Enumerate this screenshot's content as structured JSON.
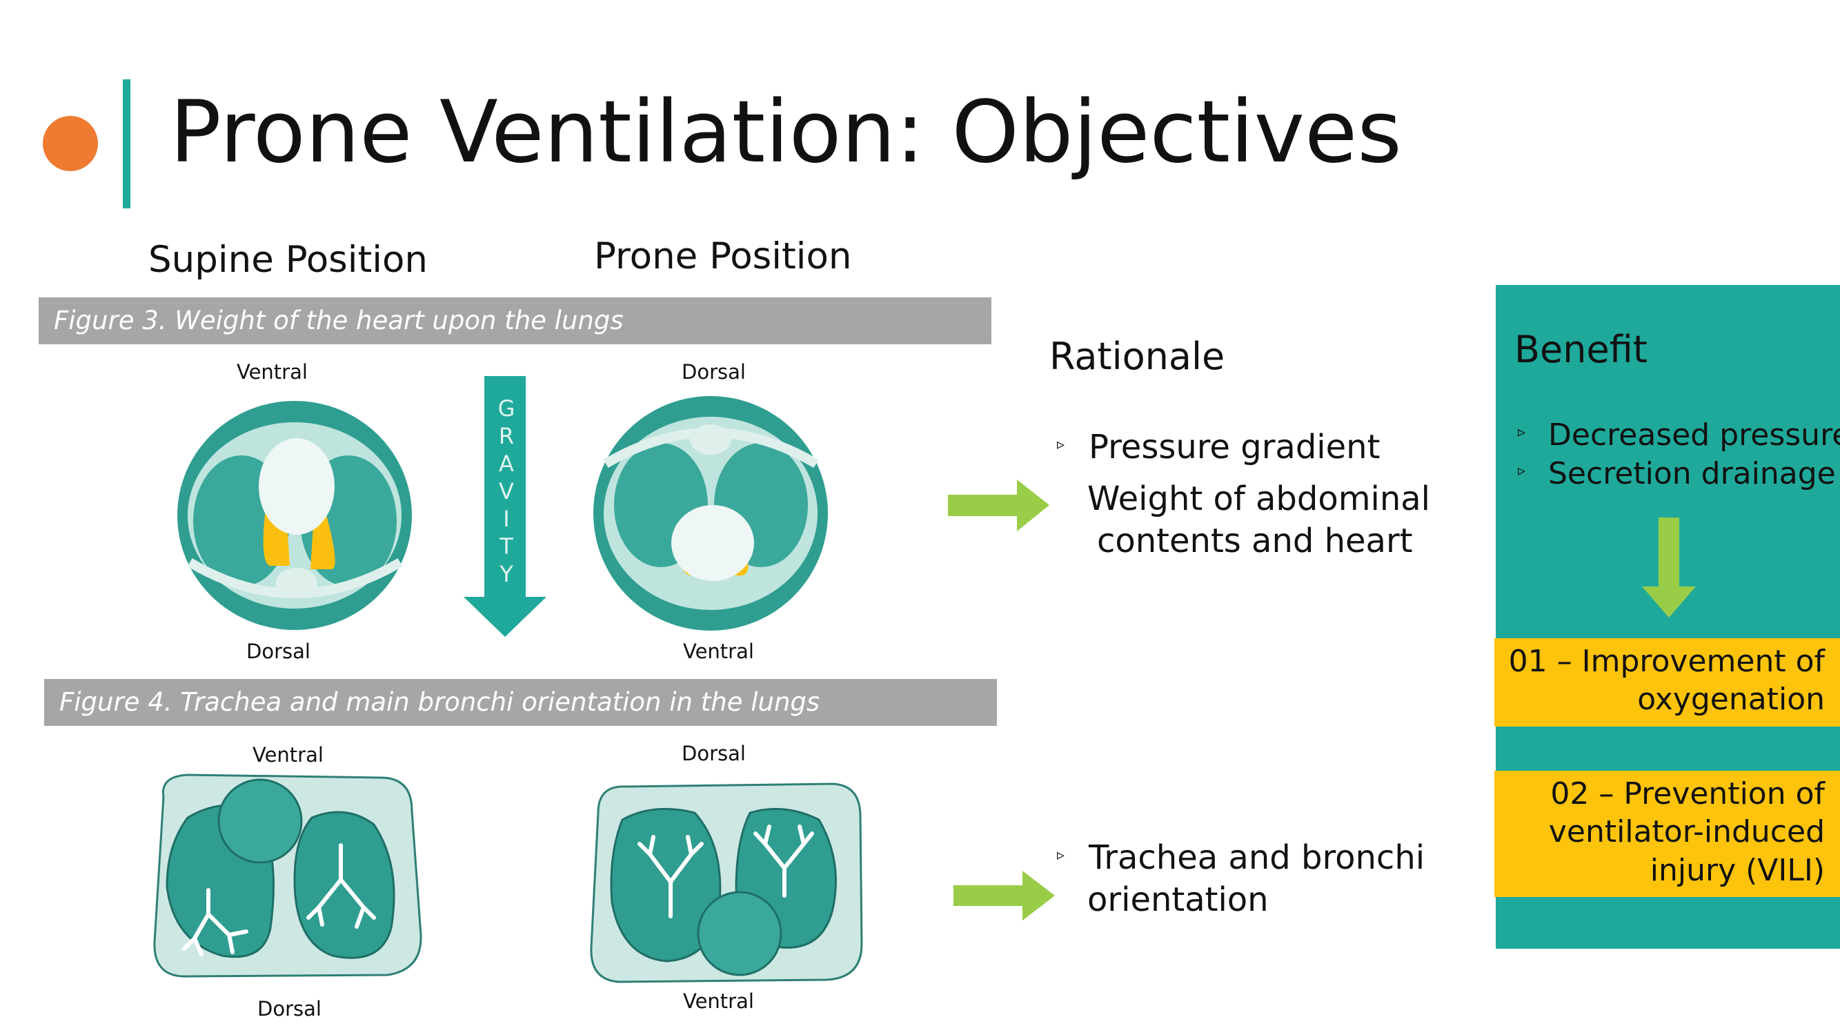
{
  "slide": {
    "title": "Prone Ventilation: Objectives"
  },
  "positions": {
    "supine": "Supine Position",
    "prone": "Prone Position"
  },
  "figure3": {
    "caption": "Figure 3. Weight of the heart upon the lungs",
    "supine_top": "Ventral",
    "supine_bottom": "Dorsal",
    "prone_top": "Dorsal",
    "prone_bottom": "Ventral",
    "gravity_letters": [
      "G",
      "R",
      "A",
      "V",
      "I",
      "T",
      "Y"
    ]
  },
  "figure4": {
    "caption": "Figure 4. Trachea and main bronchi orientation in the lungs",
    "supine_top": "Ventral",
    "supine_bottom": "Dorsal",
    "prone_top": "Dorsal",
    "prone_bottom": "Ventral"
  },
  "rationale": {
    "heading": "Rationale",
    "bullet1": "Pressure gradient",
    "bullet1_cont1": "Weight of abdominal",
    "bullet1_cont2": "contents and heart",
    "bullet2_line1": "Trachea and bronchi",
    "bullet2_line2": "orientation"
  },
  "benefit": {
    "heading": "Benefit",
    "bullet1": "Decreased pressure",
    "bullet2": "Secretion drainage",
    "outcome1_line1": "01 – Improvement of",
    "outcome1_line2": "oxygenation",
    "outcome2_line1": "02 – Prevention of",
    "outcome2_line2": "ventilator-induced",
    "outcome2_line3": "injury (VILI)"
  },
  "icons": {
    "bullet": "triangle-bullet-icon",
    "arrow_right": "green-arrow-right-icon",
    "arrow_down": "green-arrow-down-icon",
    "gravity": "gravity-arrow-icon"
  },
  "colors": {
    "teal": "#1fa99a",
    "orange_dot": "#ee7b30",
    "yellow": "#fec30b",
    "green_arrow": "#9acd47",
    "caption_gray": "#a6a6a6",
    "lung_fill": "#2f9e91",
    "body_fill": "#cde8e3"
  }
}
